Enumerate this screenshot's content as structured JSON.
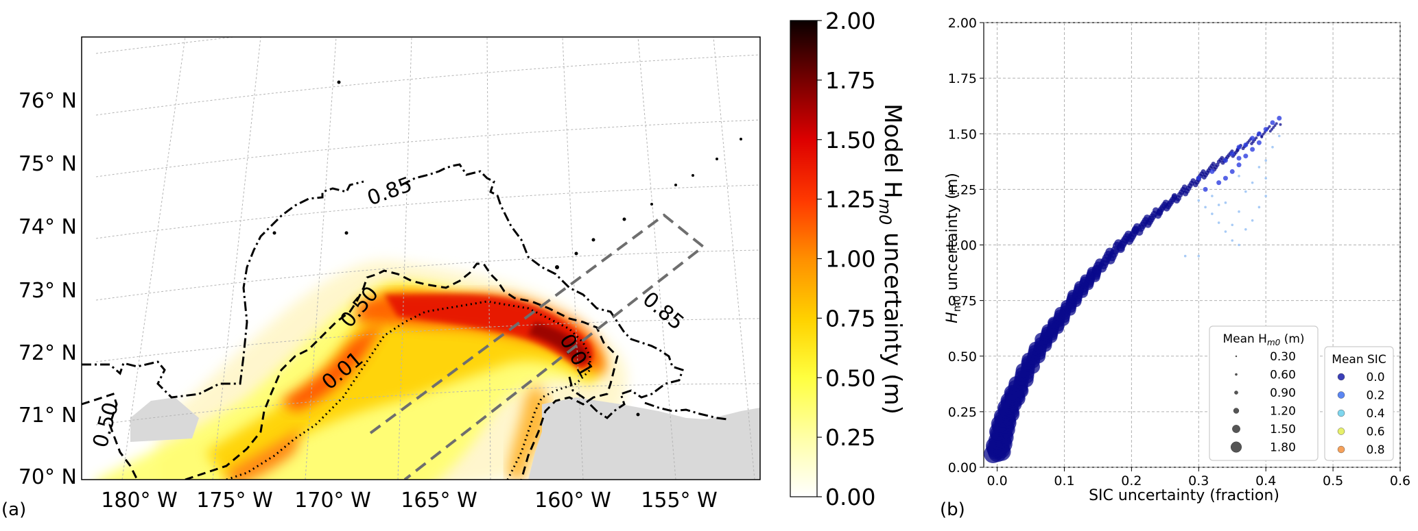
{
  "panel_a": {
    "label": "(a)",
    "lat_ticks": [
      "70° N",
      "71° N",
      "72° N",
      "73° N",
      "74° N",
      "75° N",
      "76° N"
    ],
    "lon_ticks": [
      "180° W",
      "175° W",
      "170° W",
      "165° W",
      "160° W",
      "155° W"
    ],
    "contour_labels": [
      "0.85",
      "0.50",
      "0.01",
      "0.50",
      "0.01",
      "0.85"
    ],
    "colorbar": {
      "label": "Model H",
      "label_sub": "m0",
      "label_rest": " uncertainty (m)",
      "ticks": [
        "0.00",
        "0.25",
        "0.50",
        "0.75",
        "1.00",
        "1.25",
        "1.50",
        "1.75",
        "2.00"
      ],
      "range": [
        0,
        2
      ],
      "colormap": "hot_r"
    },
    "colors": {
      "land": "#d9d9d9",
      "contour": "#000000",
      "box": "#6e6e6e",
      "grid": "#b4b4b4"
    }
  },
  "panel_b": {
    "label": "(b)",
    "chart_data": {
      "type": "scatter",
      "xlabel": "SIC uncertainty (fraction)",
      "ylabel_main": "H",
      "ylabel_sub": "m0",
      "ylabel_rest": " uncertainty (m)",
      "xlim": [
        -0.02,
        0.6
      ],
      "ylim": [
        0,
        2
      ],
      "xticks": [
        "0.0",
        "0.1",
        "0.2",
        "0.3",
        "0.4",
        "0.5",
        "0.6"
      ],
      "xtick_values": [
        0,
        0.1,
        0.2,
        0.3,
        0.4,
        0.5,
        0.6
      ],
      "yticks": [
        "0.00",
        "0.25",
        "0.50",
        "0.75",
        "1.00",
        "1.25",
        "1.50",
        "1.75",
        "2.00"
      ],
      "ytick_values": [
        0,
        0.25,
        0.5,
        0.75,
        1.0,
        1.25,
        1.5,
        1.75,
        2.0
      ],
      "grid": true,
      "main_branch": [
        [
          0.0,
          0.06
        ],
        [
          0.005,
          0.13
        ],
        [
          0.01,
          0.2
        ],
        [
          0.02,
          0.28
        ],
        [
          0.03,
          0.35
        ],
        [
          0.05,
          0.47
        ],
        [
          0.07,
          0.57
        ],
        [
          0.09,
          0.65
        ],
        [
          0.11,
          0.74
        ],
        [
          0.13,
          0.82
        ],
        [
          0.15,
          0.89
        ],
        [
          0.18,
          0.99
        ],
        [
          0.21,
          1.07
        ],
        [
          0.24,
          1.15
        ],
        [
          0.27,
          1.22
        ],
        [
          0.3,
          1.3
        ],
        [
          0.33,
          1.37
        ],
        [
          0.36,
          1.43
        ],
        [
          0.39,
          1.49
        ],
        [
          0.42,
          1.55
        ]
      ],
      "upper_scatter": [
        [
          0.3,
          1.3
        ],
        [
          0.32,
          1.33
        ],
        [
          0.34,
          1.38
        ],
        [
          0.35,
          1.41
        ],
        [
          0.36,
          1.44
        ],
        [
          0.37,
          1.45
        ],
        [
          0.38,
          1.48
        ],
        [
          0.39,
          1.5
        ],
        [
          0.4,
          1.52
        ],
        [
          0.41,
          1.55
        ],
        [
          0.42,
          1.57
        ],
        [
          0.37,
          1.4
        ],
        [
          0.36,
          1.36
        ],
        [
          0.35,
          1.33
        ],
        [
          0.34,
          1.3
        ],
        [
          0.33,
          1.28
        ],
        [
          0.31,
          1.25
        ],
        [
          0.38,
          1.43
        ],
        [
          0.39,
          1.46
        ],
        [
          0.36,
          1.39
        ]
      ],
      "faint_scatter": [
        [
          0.3,
          1.2
        ],
        [
          0.31,
          1.17
        ],
        [
          0.32,
          1.14
        ],
        [
          0.33,
          1.1
        ],
        [
          0.34,
          1.06
        ],
        [
          0.35,
          1.02
        ],
        [
          0.36,
          1.0
        ],
        [
          0.37,
          1.07
        ],
        [
          0.38,
          1.11
        ],
        [
          0.39,
          1.17
        ],
        [
          0.4,
          1.22
        ],
        [
          0.38,
          1.28
        ],
        [
          0.39,
          1.35
        ],
        [
          0.4,
          1.38
        ],
        [
          0.41,
          1.44
        ],
        [
          0.42,
          1.49
        ],
        [
          0.37,
          1.24
        ],
        [
          0.36,
          1.15
        ],
        [
          0.35,
          1.09
        ],
        [
          0.33,
          1.18
        ],
        [
          0.3,
          0.95
        ],
        [
          0.28,
          0.95
        ],
        [
          0.36,
          1.31
        ],
        [
          0.32,
          1.22
        ],
        [
          0.34,
          1.19
        ],
        [
          0.4,
          1.3
        ]
      ],
      "legend_size": {
        "title": "Mean H",
        "title_sub": "m0",
        "title_rest": " (m)",
        "entries": [
          "0.30",
          "0.60",
          "0.90",
          "1.20",
          "1.50",
          "1.80"
        ],
        "values": [
          0.3,
          0.6,
          0.9,
          1.2,
          1.5,
          1.8
        ]
      },
      "legend_color": {
        "title": "Mean SIC",
        "entries": [
          "0.0",
          "0.2",
          "0.4",
          "0.6",
          "0.8"
        ],
        "colors": [
          "#3b3fb8",
          "#5b86f2",
          "#7fd6ee",
          "#e7f06a",
          "#f6a15a"
        ]
      },
      "point_colors": {
        "main": "#0a0a8c",
        "upper": "#2d3de0",
        "faint": "#9fc5f5"
      }
    }
  }
}
